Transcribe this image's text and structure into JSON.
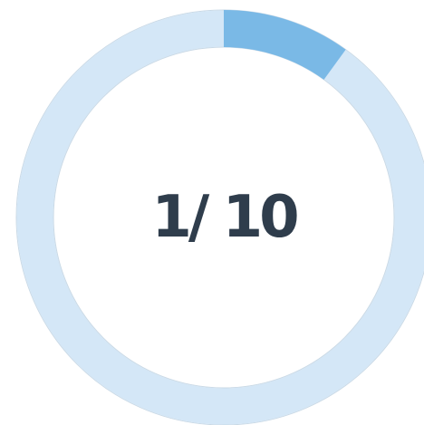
{
  "progress": {
    "label": "1/ 10",
    "value": 1,
    "max": 10
  }
}
